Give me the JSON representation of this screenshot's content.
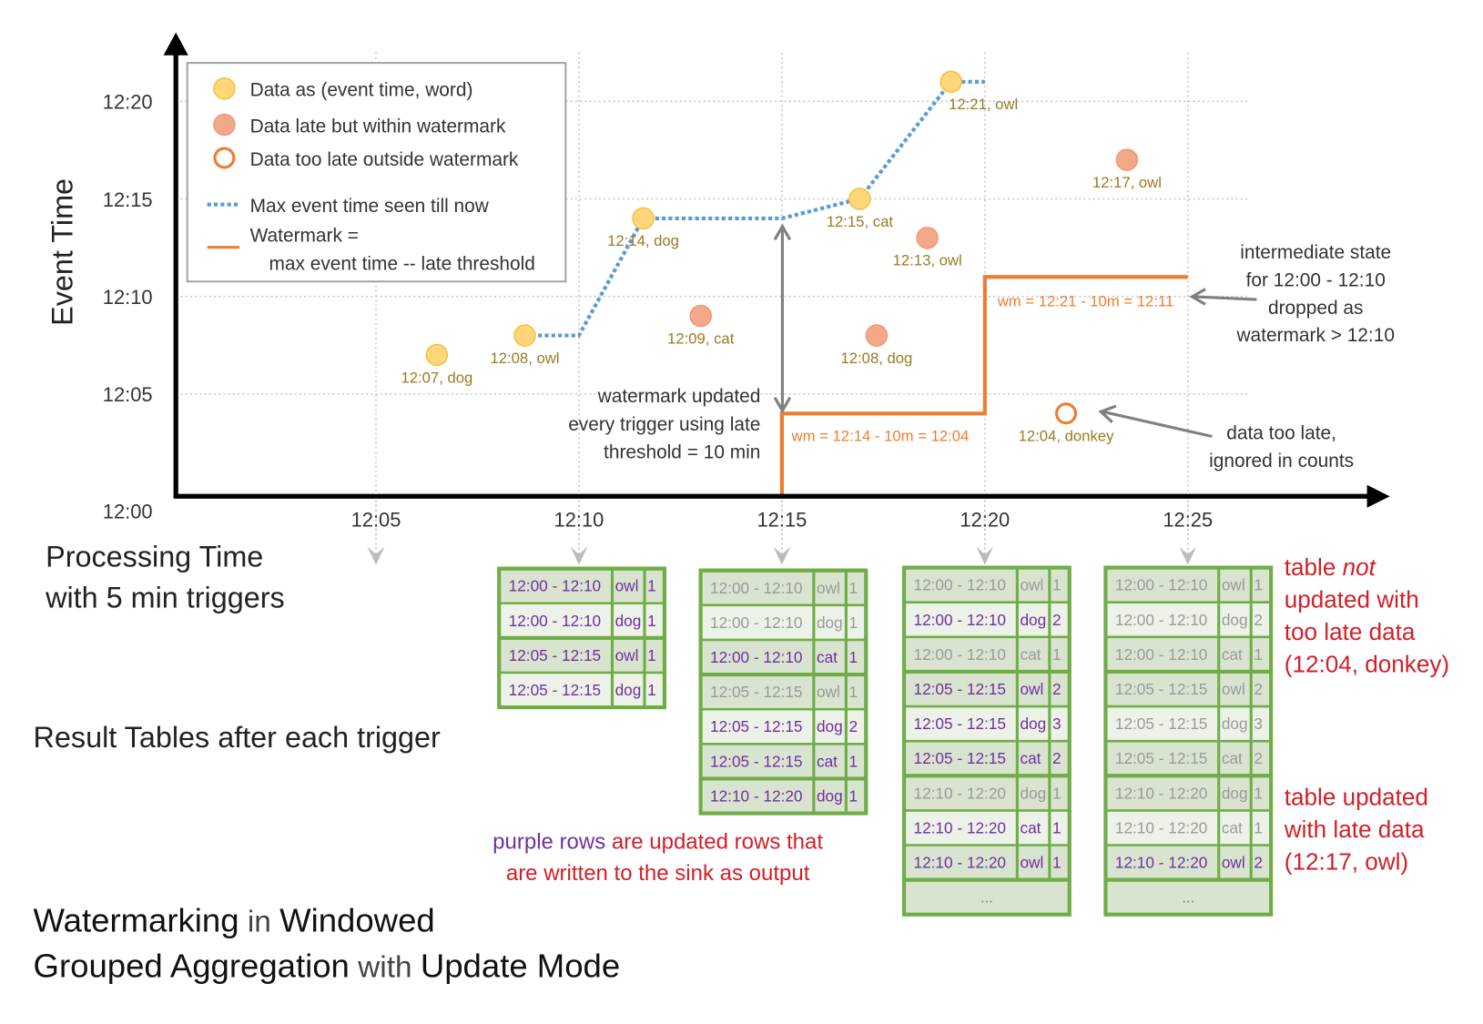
{
  "colors": {
    "on_time": "#ffd77a",
    "late": "#f4a88a",
    "too_late": "#ed7d31",
    "max_line": "#5b9bd5",
    "watermark": "#ed7d31",
    "updated_text": "#7030a0",
    "stale_text": "#9a9a9a",
    "table_border": "#70ad47",
    "note_red": "#d0202a"
  },
  "axes": {
    "y_label": "Event Time",
    "y_ticks": [
      "12:00",
      "12:05",
      "12:10",
      "12:15",
      "12:20"
    ],
    "x_ticks": [
      "12:05",
      "12:10",
      "12:15",
      "12:20",
      "12:25"
    ],
    "x_label_line1": "Processing Time",
    "x_label_line2": "with 5 min triggers"
  },
  "legend": {
    "on_time": "Data as (event time, word)",
    "late": "Data late but within watermark",
    "too_late": "Data too late outside watermark",
    "max_line": "Max event time seen till now",
    "watermark_line1": "Watermark =",
    "watermark_line2": "max event time -- late threshold"
  },
  "points": [
    {
      "label": "12:07, dog",
      "event": "12:07",
      "processing": "12:06:30",
      "kind": "on_time"
    },
    {
      "label": "12:08, owl",
      "event": "12:08",
      "processing": "12:08:40",
      "kind": "on_time"
    },
    {
      "label": "12:14, dog",
      "event": "12:14",
      "processing": "12:11:35",
      "kind": "on_time"
    },
    {
      "label": "12:09, cat",
      "event": "12:09",
      "processing": "12:13:00",
      "kind": "late"
    },
    {
      "label": "12:15, cat",
      "event": "12:15",
      "processing": "12:16:55",
      "kind": "on_time"
    },
    {
      "label": "12:08, dog",
      "event": "12:08",
      "processing": "12:17:20",
      "kind": "late"
    },
    {
      "label": "12:13, owl",
      "event": "12:13",
      "processing": "12:18:35",
      "kind": "late"
    },
    {
      "label": "12:21, owl",
      "event": "12:21",
      "processing": "12:19:10",
      "kind": "on_time"
    },
    {
      "label": "12:17, owl",
      "event": "12:17",
      "processing": "12:23:30",
      "kind": "late"
    },
    {
      "label": "12:04, donkey",
      "event": "12:04",
      "processing": "12:22:00",
      "kind": "too_late"
    }
  ],
  "max_event_line": [
    [
      "12:08:40",
      "12:08"
    ],
    [
      "12:10:00",
      "12:08"
    ],
    [
      "12:11:35",
      "12:14"
    ],
    [
      "12:15:00",
      "12:14"
    ],
    [
      "12:16:55",
      "12:15"
    ],
    [
      "12:19:10",
      "12:21"
    ],
    [
      "12:20:00",
      "12:21"
    ]
  ],
  "watermark_line": [
    [
      "12:15:00",
      "12:00"
    ],
    [
      "12:15:00",
      "12:04"
    ],
    [
      "12:20:00",
      "12:04"
    ],
    [
      "12:20:00",
      "12:11"
    ],
    [
      "12:25:00",
      "12:11"
    ]
  ],
  "watermark_labels": [
    "wm = 12:14 - 10m = 12:04",
    "wm = 12:21 - 10m = 12:11"
  ],
  "annotations": {
    "watermark_updated": [
      "watermark updated",
      "every trigger using late",
      "threshold = 10 min"
    ],
    "state_dropped": [
      "intermediate state",
      "for 12:00 - 12:10",
      "dropped as",
      "watermark > 12:10"
    ],
    "too_late": [
      "data too late,",
      "ignored in counts"
    ]
  },
  "result_tables_label": "Result Tables after each trigger",
  "tables": [
    {
      "trigger": "12:10",
      "ellipsis": null,
      "rows": [
        {
          "window": "12:00 - 12:10",
          "word": "owl",
          "count": "1",
          "updated": true
        },
        {
          "window": "12:00 - 12:10",
          "word": "dog",
          "count": "1",
          "updated": true
        },
        {
          "window": "12:05 - 12:15",
          "word": "owl",
          "count": "1",
          "updated": true
        },
        {
          "window": "12:05 - 12:15",
          "word": "dog",
          "count": "1",
          "updated": true
        }
      ]
    },
    {
      "trigger": "12:15",
      "ellipsis": null,
      "rows": [
        {
          "window": "12:00 - 12:10",
          "word": "owl",
          "count": "1",
          "updated": false
        },
        {
          "window": "12:00 - 12:10",
          "word": "dog",
          "count": "1",
          "updated": false
        },
        {
          "window": "12:00 - 12:10",
          "word": "cat",
          "count": "1",
          "updated": true
        },
        {
          "window": "12:05 - 12:15",
          "word": "owl",
          "count": "1",
          "updated": false
        },
        {
          "window": "12:05 - 12:15",
          "word": "dog",
          "count": "2",
          "updated": true
        },
        {
          "window": "12:05 - 12:15",
          "word": "cat",
          "count": "1",
          "updated": true
        },
        {
          "window": "12:10 - 12:20",
          "word": "dog",
          "count": "1",
          "updated": true
        }
      ]
    },
    {
      "trigger": "12:20",
      "ellipsis": "...",
      "rows": [
        {
          "window": "12:00 - 12:10",
          "word": "owl",
          "count": "1",
          "updated": false
        },
        {
          "window": "12:00 - 12:10",
          "word": "dog",
          "count": "2",
          "updated": true
        },
        {
          "window": "12:00 - 12:10",
          "word": "cat",
          "count": "1",
          "updated": false
        },
        {
          "window": "12:05 - 12:15",
          "word": "owl",
          "count": "2",
          "updated": true
        },
        {
          "window": "12:05 - 12:15",
          "word": "dog",
          "count": "3",
          "updated": true
        },
        {
          "window": "12:05 - 12:15",
          "word": "cat",
          "count": "2",
          "updated": true
        },
        {
          "window": "12:10 - 12:20",
          "word": "dog",
          "count": "1",
          "updated": false
        },
        {
          "window": "12:10 - 12:20",
          "word": "cat",
          "count": "1",
          "updated": true
        },
        {
          "window": "12:10 - 12:20",
          "word": "owl",
          "count": "1",
          "updated": true
        }
      ]
    },
    {
      "trigger": "12:25",
      "ellipsis": "...",
      "rows": [
        {
          "window": "12:00 - 12:10",
          "word": "owl",
          "count": "1",
          "updated": false
        },
        {
          "window": "12:00 - 12:10",
          "word": "dog",
          "count": "2",
          "updated": false
        },
        {
          "window": "12:00 - 12:10",
          "word": "cat",
          "count": "1",
          "updated": false
        },
        {
          "window": "12:05 - 12:15",
          "word": "owl",
          "count": "2",
          "updated": false
        },
        {
          "window": "12:05 - 12:15",
          "word": "dog",
          "count": "3",
          "updated": false
        },
        {
          "window": "12:05 - 12:15",
          "word": "cat",
          "count": "2",
          "updated": false
        },
        {
          "window": "12:10 - 12:20",
          "word": "dog",
          "count": "1",
          "updated": false
        },
        {
          "window": "12:10 - 12:20",
          "word": "cat",
          "count": "1",
          "updated": false
        },
        {
          "window": "12:10 - 12:20",
          "word": "owl",
          "count": "2",
          "updated": true
        }
      ]
    }
  ],
  "notes": {
    "not_updated_pre": "table ",
    "not_updated_em": "not",
    "not_updated_rest": [
      "updated with",
      "too late data",
      "(12:04, donkey)"
    ],
    "updated": [
      "table updated",
      "with late data",
      "(12:17, owl)"
    ]
  },
  "caption": {
    "purple": "purple rows",
    "rest1": " are updated rows that",
    "line2": "are written to the sink as output"
  },
  "title": {
    "w1": "Watermarking",
    "w2": " in ",
    "w3": "Windowed",
    "w4": "Grouped Aggregation",
    "w5": " with ",
    "w6": "Update Mode"
  }
}
